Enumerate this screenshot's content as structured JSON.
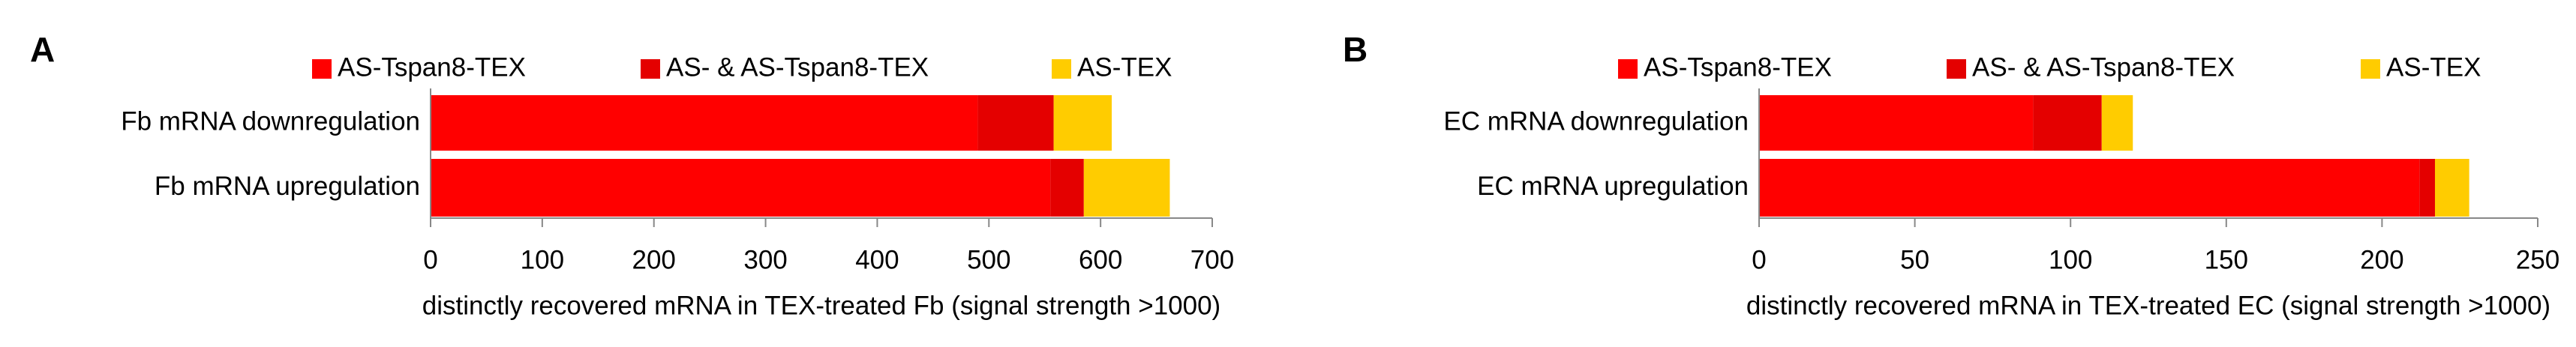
{
  "chart_data": [
    {
      "type": "bar",
      "orientation": "horizontal",
      "stacked": true,
      "panel_label": "A",
      "categories": [
        "Fb mRNA downregulation",
        "Fb mRNA upregulation"
      ],
      "series": [
        {
          "name": "AS-Tspan8-TEX",
          "color": "#ff0000",
          "values": [
            490,
            555
          ]
        },
        {
          "name": "AS- & AS-Tspan8-TEX",
          "color": "#e40000",
          "values": [
            68,
            30
          ]
        },
        {
          "name": "AS-TEX",
          "color": "#ffcc00",
          "values": [
            52,
            77
          ]
        }
      ],
      "xlim": [
        0,
        700
      ],
      "xticks": [
        0,
        100,
        200,
        300,
        400,
        500,
        600,
        700
      ],
      "xlabel": "distinctly recovered mRNA in TEX-treated Fb (signal strength >1000)"
    },
    {
      "type": "bar",
      "orientation": "horizontal",
      "stacked": true,
      "panel_label": "B",
      "categories": [
        "EC mRNA downregulation",
        "EC mRNA upregulation"
      ],
      "series": [
        {
          "name": "AS-Tspan8-TEX",
          "color": "#ff0000",
          "values": [
            88,
            212
          ]
        },
        {
          "name": "AS- & AS-Tspan8-TEX",
          "color": "#e40000",
          "values": [
            22,
            5
          ]
        },
        {
          "name": "AS-TEX",
          "color": "#ffcc00",
          "values": [
            10,
            11
          ]
        }
      ],
      "xlim": [
        0,
        250
      ],
      "xticks": [
        0,
        50,
        100,
        150,
        200,
        250
      ],
      "xlabel": "distinctly recovered mRNA in TEX-treated EC (signal strength >1000)"
    }
  ]
}
